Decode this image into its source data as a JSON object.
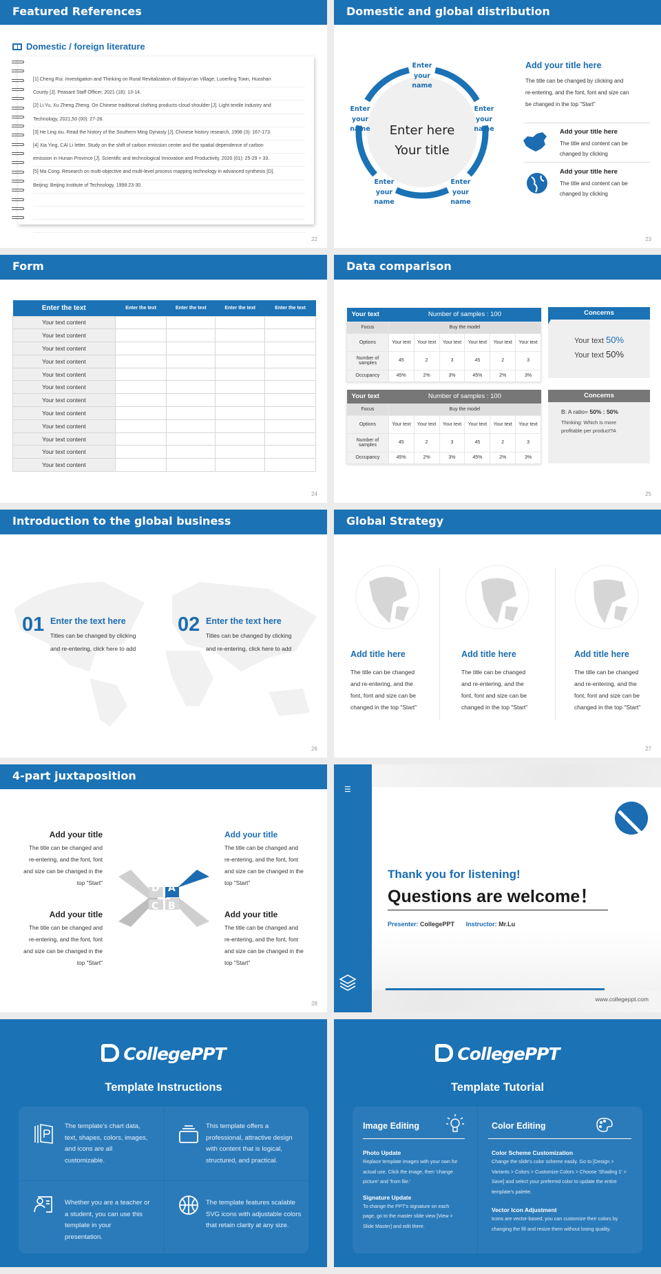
{
  "slides": {
    "s22": {
      "title": "Featured References",
      "subtitle": "Domestic / foreign literature",
      "lines": [
        "[1] Cheng Rui. Investigation and Thinking on Rural Revitalization of Baiyun'an Village, Luoerling Town, Huoshan",
        "County [J]. Peasant Staff Officer, 2021 (18): 13-14.",
        "[2] Li Yu, Xu Zheng Zheng. On Chinese traditional clothing products cloud shoulder [J]. Light textile Industry and",
        "Technology, 2021,50 (00): 27-28.",
        "[3] He Ling xiu. Read the history of the Southern Ming Dynasty [J]. Chinese history research, 1998 (3): 167-173.",
        "[4] Xia Ying, CAI Li letter. Study on the shift of carbon emission center and the spatial dependence of carbon",
        "emission in Hunan Province [J]. Scientific and technological Innovation and Productivity, 2020 (01): 25-29 + 33.",
        "[5] Ma Cong. Research on multi-objective and multi-level process mapping technology in advanced synthesis [D].",
        "Beijing: Beijing Institute of Technology, 1998:23-30."
      ],
      "page": "22"
    },
    "s23": {
      "title": "Domestic and global distribution",
      "center_line1": "Enter here",
      "center_line2": "Your title",
      "node_label": [
        "Enter",
        "your",
        "name"
      ],
      "main_title": "Add your title here",
      "main_text": [
        "The title can be changed by clicking and",
        "re-entering, and the font, font and size can",
        "be changed in the top \"Start\""
      ],
      "items": [
        {
          "icon": "china-map-icon",
          "title": "Add your title here",
          "text": [
            "The title and content can be",
            "changed by clicking"
          ]
        },
        {
          "icon": "globe-icon",
          "title": "Add your title here",
          "text": [
            "The title and content can be",
            "changed by clicking"
          ]
        }
      ],
      "page": "23"
    },
    "s24": {
      "title": "Form",
      "headers": [
        "Enter the text",
        "Enter the text",
        "Enter the text",
        "Enter the text",
        "Enter the text"
      ],
      "rows": [
        "Your text content",
        "Your text content",
        "Your text content",
        "Your text content",
        "Your text content",
        "Your text content",
        "Your text content",
        "Your text content",
        "Your text content",
        "Your text content",
        "Your text content",
        "Your text content"
      ],
      "page": "24"
    },
    "s25": {
      "title": "Data comparison",
      "tables": [
        {
          "color": "#1b72b5",
          "head": "Your text",
          "samples": "Number of samples : 100",
          "focus": "Focus",
          "focus_val": "Buy the model",
          "options_label": "Options",
          "options": [
            "Your text",
            "Your text",
            "Your text",
            "Your text",
            "Your text",
            "Your text"
          ],
          "number_label": "Number of samples",
          "numbers": [
            "45",
            "2",
            "3",
            "45",
            "2",
            "3"
          ],
          "occupancy_label": "Occupancy",
          "occupancy": [
            "45%",
            "2%",
            "3%",
            "45%",
            "2%",
            "3%"
          ]
        },
        {
          "color": "#777777",
          "head": "Your text",
          "samples": "Number of samples : 100",
          "focus": "Focus",
          "focus_val": "Buy the model",
          "options_label": "Options",
          "options": [
            "Your text",
            "Your text",
            "Your text",
            "Your text",
            "Your text",
            "Your text"
          ],
          "number_label": "Number of samples",
          "numbers": [
            "45",
            "2",
            "3",
            "45",
            "2",
            "3"
          ],
          "occupancy_label": "Occupancy",
          "occupancy": [
            "45%",
            "2%",
            "3%",
            "45%",
            "2%",
            "3%"
          ]
        }
      ],
      "concern1": {
        "title": "Concerns",
        "line1": "Your text",
        "val1": "50%",
        "line2": "Your text",
        "val2": "50%"
      },
      "concern2": {
        "title": "Concerns",
        "ratio_label": "B: A ratio=",
        "ratio": "50% : 50%",
        "thinking": "Thinking: Which is more profitable per product?A"
      },
      "page": "25"
    },
    "s26": {
      "title": "Introduction to the global business",
      "items": [
        {
          "num": "01",
          "title": "Enter the text here",
          "text": [
            "Titles can be changed by clicking",
            "and re-entering, click here to add"
          ]
        },
        {
          "num": "02",
          "title": "Enter the text here",
          "text": [
            "Titles can be changed by clicking",
            "and re-entering, click here to add"
          ]
        }
      ],
      "page": "26"
    },
    "s27": {
      "title": "Global Strategy",
      "cols": [
        {
          "title": "Add title here",
          "text": [
            "The title can be changed",
            "and re-entering, and the",
            "font, font and size can be",
            "changed in the top \"Start\""
          ]
        },
        {
          "title": "Add title here",
          "text": [
            "The title can be changed",
            "and re-entering, and the",
            "font, font and size can be",
            "changed in the top \"Start\""
          ]
        },
        {
          "title": "Add title here",
          "text": [
            "The title can be changed",
            "and re-entering, and the",
            "font, font and size can be",
            "changed in the top \"Start\""
          ]
        }
      ],
      "page": "27"
    },
    "s28": {
      "title": "4-part juxtaposition",
      "letters": [
        "A",
        "B",
        "C",
        "D"
      ],
      "blocks": [
        {
          "title": "Add your title",
          "text": [
            "The title can be changed and",
            "re-entering, and the font, font",
            "and size can be changed in the",
            "top \"Start\""
          ]
        },
        {
          "title": "Add your title",
          "text": [
            "The title can be changed and",
            "re-entering, and the font, font",
            "and size can be changed in the",
            "top \"Start\""
          ]
        },
        {
          "title": "Add your title",
          "text": [
            "The title can be changed and",
            "re-entering, and the font, font",
            "and size can be changed in the",
            "top \"Start\""
          ]
        },
        {
          "title": "Add your title",
          "text": [
            "The title can be changed and",
            "re-entering, and the font, font",
            "and size can be changed in the",
            "top \"Start\""
          ]
        }
      ],
      "page": "28"
    },
    "s29": {
      "thanks": "Thank you for listening!",
      "questions": "Questions are welcome！",
      "presenter_label": "Presenter:",
      "presenter": "CollegePPT",
      "instructor_label": "Instructor:",
      "instructor": "Mr.Lu",
      "url": "www.collegeppt.com"
    },
    "s30": {
      "logo": "CollegePPT",
      "title": "Template Instructions",
      "items": [
        {
          "icon": "book-icon",
          "text": "The template's chart data, text, shapes, colors, images, and icons are all customizable."
        },
        {
          "icon": "layers-box-icon",
          "text": "This template offers a professional, attractive design with content that is logical, structured, and practical."
        },
        {
          "icon": "teacher-icon",
          "text": "Whether you are a teacher or a student, you can use this template in your presentation."
        },
        {
          "icon": "basketball-icon",
          "text": "The template features scalable SVG icons with adjustable colors that retain clarity at any size."
        }
      ]
    },
    "s31": {
      "logo": "CollegePPT",
      "title": "Template Tutorial",
      "left": {
        "heading": "Image Editing",
        "icon": "lightbulb-icon",
        "sections": [
          {
            "title": "Photo Update",
            "text": "Replace template images with your own for actual use. Click the image, then 'change picture' and 'from file.'"
          },
          {
            "title": "Signature Update",
            "text": "To change the PPT's signature on each page, go to the master slide view [View > Slide Master] and edit there."
          }
        ]
      },
      "right": {
        "heading": "Color Editing",
        "icon": "palette-icon",
        "sections": [
          {
            "title": "Color Scheme Customization",
            "text": "Change the slide's color scheme easily. Go to [Design > Variants > Colors > Customize Colors > Choose 'Shading 1' > Save] and select your preferred color to update the entire template's palette."
          },
          {
            "title": "Vector Icon Adjustment",
            "text": "Icons are vector-based; you can customize their colors by changing the fill and resize them without losing quality."
          }
        ]
      }
    }
  },
  "colors": {
    "brand": "#1b72b5",
    "gray_header": "#777777",
    "background": "#ececec"
  }
}
